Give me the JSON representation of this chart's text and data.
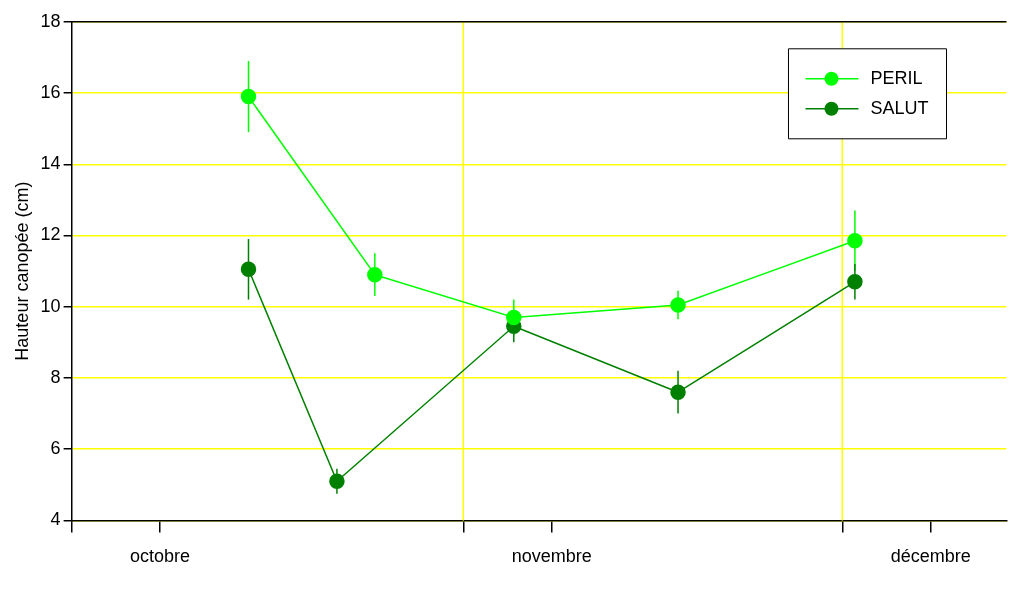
{
  "chart_data": {
    "type": "line",
    "ylabel": "Hauteur canopée (cm)",
    "xlim": [
      "--10-01",
      "--12-14"
    ],
    "xticks": [
      {
        "value": "--10-01",
        "label": null
      },
      {
        "value": "--10-08",
        "label": "octobre"
      },
      {
        "value": "--11-01",
        "label": null
      },
      {
        "value": "--11-08",
        "label": "novembre"
      },
      {
        "value": "--12-01",
        "label": null
      },
      {
        "value": "--12-08",
        "label": "décembre"
      }
    ],
    "ylim": [
      4,
      18
    ],
    "yticks": [
      4,
      6,
      8,
      10,
      12,
      14,
      16,
      18
    ],
    "grid": "y",
    "legend": "top right",
    "marker": "circle",
    "line_style": "solid",
    "ref_lines": [
      {
        "axis": "x",
        "value": "--11-01",
        "color": "#ffff00"
      },
      {
        "axis": "x",
        "value": "--12-01",
        "color": "#ffff00"
      }
    ],
    "series": [
      {
        "name": "PERIL",
        "color": "#00ff00",
        "x": [
          "--10-15",
          "--10-25",
          "--11-05",
          "--11-18",
          "--12-02"
        ],
        "values": [
          15.9,
          10.9,
          9.7,
          10.05,
          11.85
        ],
        "errors": [
          1.0,
          0.6,
          0.5,
          0.4,
          0.85
        ]
      },
      {
        "name": "SALUT",
        "color": "#008000",
        "x": [
          "--10-15",
          "--10-22",
          "--11-05",
          "--11-18",
          "--12-02"
        ],
        "values": [
          11.05,
          5.1,
          9.45,
          7.6,
          10.7
        ],
        "errors": [
          0.85,
          0.35,
          0.45,
          0.6,
          0.5
        ]
      }
    ]
  }
}
